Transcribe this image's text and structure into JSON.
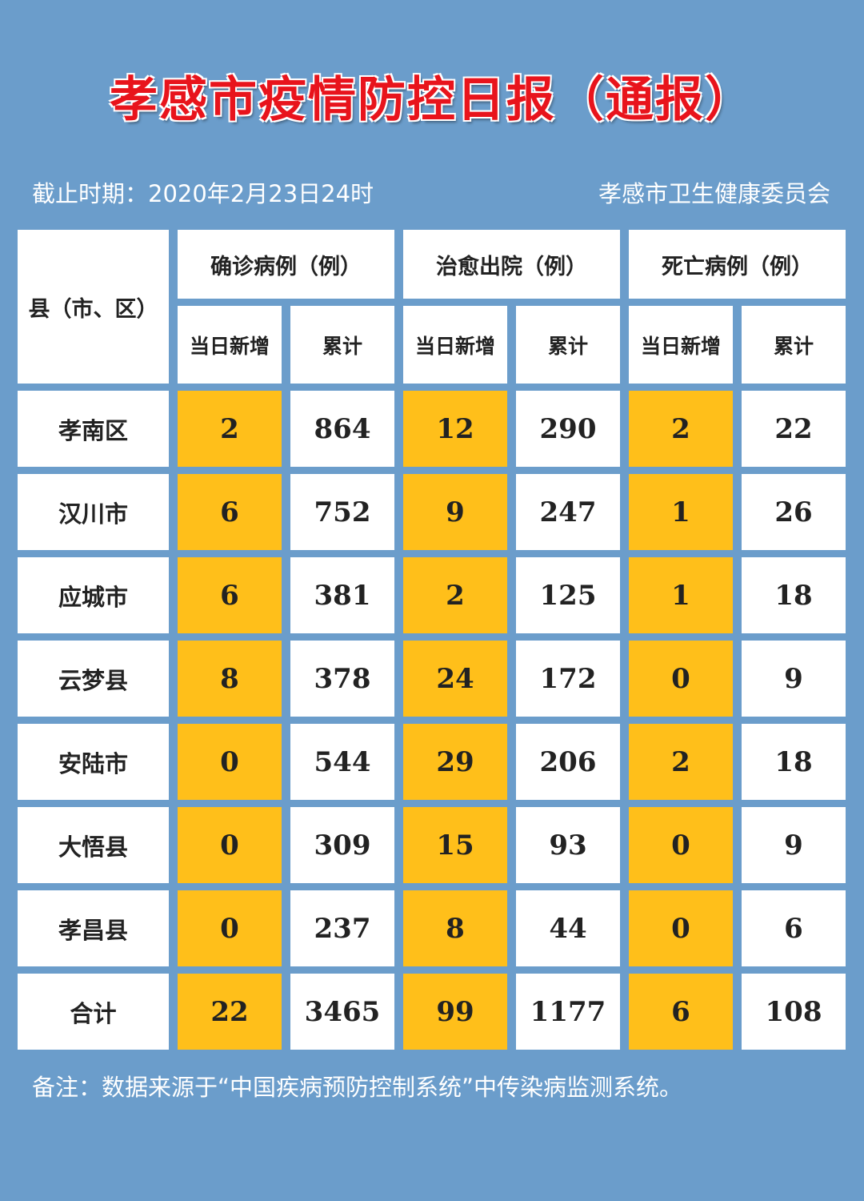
{
  "title": "孝感市疫情防控日报（通报）",
  "cutoff": "截止时期：2020年2月23日24时",
  "issuer": "孝感市卫生健康委员会",
  "table": {
    "county_header": "县（市、区）",
    "groups": [
      "确诊病例（例）",
      "治愈出院（例）",
      "死亡病例（例）"
    ],
    "subheaders": [
      "当日新增",
      "累计",
      "当日新增",
      "累计",
      "当日新增",
      "累计"
    ],
    "rows": [
      {
        "name": "孝南区",
        "values": [
          "2",
          "864",
          "12",
          "290",
          "2",
          "22"
        ]
      },
      {
        "name": "汉川市",
        "values": [
          "6",
          "752",
          "9",
          "247",
          "1",
          "26"
        ]
      },
      {
        "name": "应城市",
        "values": [
          "6",
          "381",
          "2",
          "125",
          "1",
          "18"
        ]
      },
      {
        "name": "云梦县",
        "values": [
          "8",
          "378",
          "24",
          "172",
          "0",
          "9"
        ]
      },
      {
        "name": "安陆市",
        "values": [
          "0",
          "544",
          "29",
          "206",
          "2",
          "18"
        ]
      },
      {
        "name": "大悟县",
        "values": [
          "0",
          "309",
          "15",
          "93",
          "0",
          "9"
        ]
      },
      {
        "name": "孝昌县",
        "values": [
          "0",
          "237",
          "8",
          "44",
          "0",
          "6"
        ]
      },
      {
        "name": "合计",
        "values": [
          "22",
          "3465",
          "99",
          "1177",
          "6",
          "108"
        ]
      }
    ]
  },
  "note": "备注：数据来源于“中国疾病预防控制系统”中传染病监测系统。",
  "colors": {
    "background": "#6b9dcb",
    "highlight": "#ffbf1a",
    "title": "#e8141c"
  }
}
